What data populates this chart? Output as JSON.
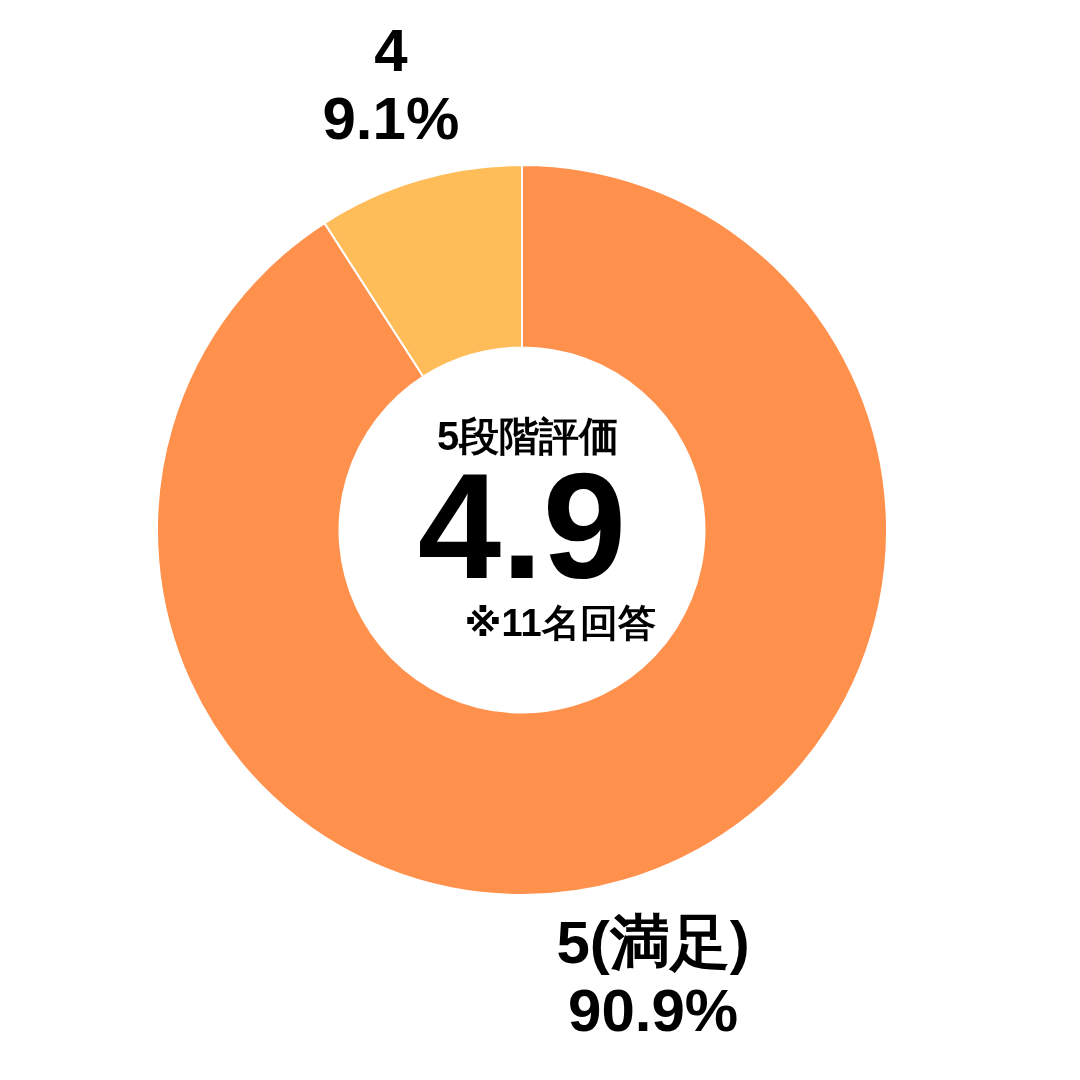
{
  "chart_data": {
    "type": "donut",
    "categories": [
      "5(満足)",
      "4"
    ],
    "values": [
      90.9,
      9.1
    ],
    "colors": [
      "#ff914d",
      "#ffbd59"
    ],
    "value_labels": [
      "90.9%",
      "9.1%"
    ],
    "annotations": [
      "5段階評価",
      "4.9",
      "※11名回答"
    ],
    "legend": false
  }
}
